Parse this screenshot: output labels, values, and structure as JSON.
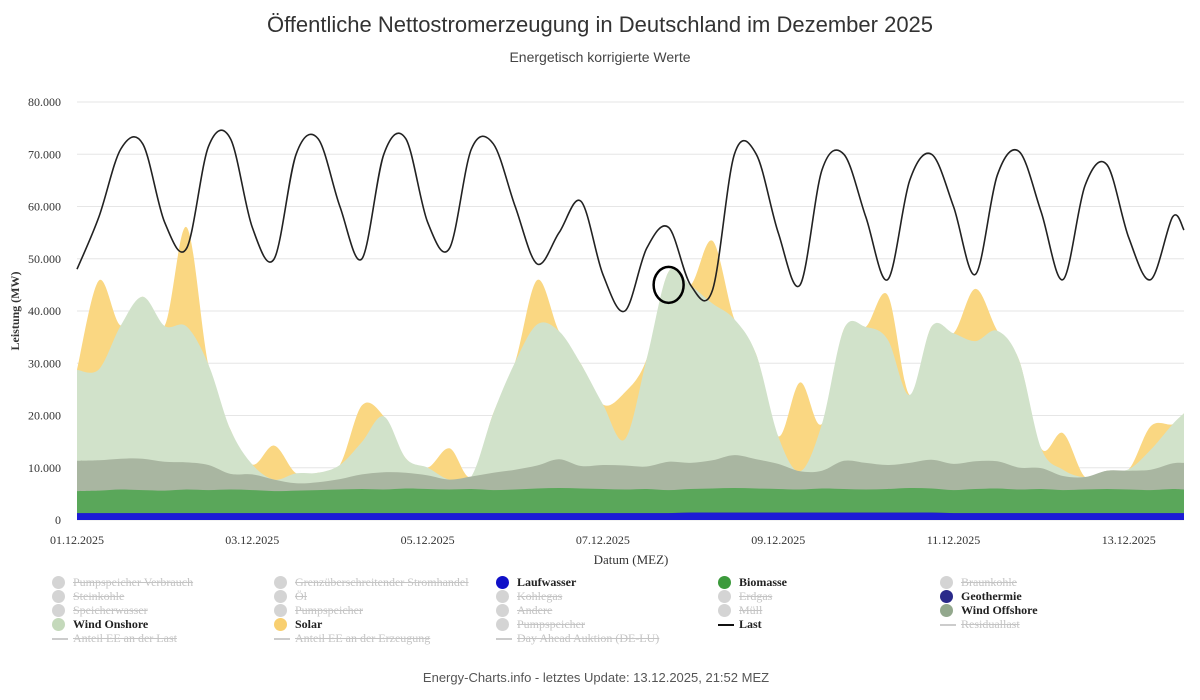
{
  "title": "Öffentliche Nettostromerzeugung in Deutschland im Dezember 2025",
  "subtitle": "Energetisch korrigierte Werte",
  "footer": "Energy-Charts.info - letztes Update: 13.12.2025, 21:52 MEZ",
  "chart_data": {
    "type": "area",
    "ylabel": "Leistung (MW)",
    "xlabel": "Datum (MEZ)",
    "ylim": [
      0,
      80000
    ],
    "yticks": [
      "0",
      "10.000",
      "20.000",
      "30.000",
      "40.000",
      "50.000",
      "60.000",
      "70.000",
      "80.000"
    ],
    "xlim_days": [
      0,
      12.63
    ],
    "xticks": [
      {
        "day": 0,
        "label": "01.12.2025"
      },
      {
        "day": 2,
        "label": "03.12.2025"
      },
      {
        "day": 4,
        "label": "05.12.2025"
      },
      {
        "day": 6,
        "label": "07.12.2025"
      },
      {
        "day": 8,
        "label": "09.12.2025"
      },
      {
        "day": 10,
        "label": "11.12.2025"
      },
      {
        "day": 12,
        "label": "13.12.2025"
      }
    ],
    "grid": true,
    "x_days": [
      0,
      0.25,
      0.5,
      0.75,
      1,
      1.25,
      1.5,
      1.75,
      2,
      2.25,
      2.5,
      2.75,
      3,
      3.25,
      3.5,
      3.75,
      4,
      4.25,
      4.5,
      4.75,
      5,
      5.25,
      5.5,
      5.75,
      6,
      6.25,
      6.5,
      6.75,
      7,
      7.25,
      7.5,
      7.75,
      8,
      8.25,
      8.5,
      8.75,
      9,
      9.25,
      9.5,
      9.75,
      10,
      10.25,
      10.5,
      10.75,
      11,
      11.25,
      11.5,
      11.75,
      12,
      12.25,
      12.5,
      12.63
    ],
    "series": [
      {
        "name": "Laufwasser",
        "color": "#1c1cd6",
        "values": [
          1300,
          1300,
          1300,
          1300,
          1300,
          1300,
          1300,
          1300,
          1300,
          1300,
          1300,
          1300,
          1300,
          1300,
          1300,
          1300,
          1300,
          1300,
          1300,
          1300,
          1300,
          1300,
          1300,
          1300,
          1300,
          1300,
          1300,
          1300,
          1400,
          1400,
          1400,
          1400,
          1400,
          1400,
          1400,
          1400,
          1400,
          1400,
          1400,
          1400,
          1300,
          1300,
          1300,
          1300,
          1300,
          1300,
          1300,
          1300,
          1300,
          1300,
          1300,
          1300
        ]
      },
      {
        "name": "Geothermie",
        "color": "#2e3192",
        "values": [
          30,
          30,
          30,
          30,
          30,
          30,
          30,
          30,
          30,
          30,
          30,
          30,
          30,
          30,
          30,
          30,
          30,
          30,
          30,
          30,
          30,
          30,
          30,
          30,
          30,
          30,
          30,
          30,
          30,
          30,
          30,
          30,
          30,
          30,
          30,
          30,
          30,
          30,
          30,
          30,
          30,
          30,
          30,
          30,
          30,
          30,
          30,
          30,
          30,
          30,
          30,
          30
        ]
      },
      {
        "name": "Biomasse",
        "color": "#5aa75a",
        "values": [
          4200,
          4300,
          4500,
          4400,
          4300,
          4500,
          4400,
          4500,
          4400,
          4200,
          4300,
          4400,
          4500,
          4600,
          4500,
          4700,
          4600,
          4500,
          4600,
          4400,
          4500,
          4700,
          4800,
          4700,
          4600,
          4500,
          4600,
          4400,
          4500,
          4600,
          4700,
          4600,
          4500,
          4400,
          4600,
          4500,
          4400,
          4500,
          4700,
          4600,
          4400,
          4600,
          4700,
          4500,
          4600,
          4400,
          4500,
          4600,
          4500,
          4400,
          4600,
          4500
        ]
      },
      {
        "name": "Wind Offshore",
        "color": "#a9b6a1",
        "values": [
          5800,
          5800,
          5900,
          6000,
          5500,
          5200,
          4800,
          3000,
          3000,
          2200,
          1400,
          1500,
          2000,
          2800,
          3300,
          3000,
          2600,
          1900,
          2400,
          3300,
          3800,
          4400,
          5500,
          4300,
          4600,
          4600,
          4300,
          5400,
          5000,
          5400,
          6300,
          5600,
          4800,
          3500,
          3400,
          5400,
          5100,
          4600,
          4800,
          5500,
          5000,
          5300,
          5200,
          4200,
          4000,
          2700,
          2400,
          3500,
          3600,
          3900,
          4900,
          5100
        ]
      },
      {
        "name": "Wind Onshore",
        "color": "#d1e2ca",
        "values": [
          17400,
          17400,
          25500,
          31000,
          26000,
          26000,
          19200,
          8500,
          1900,
          -200,
          1900,
          1800,
          2700,
          6200,
          10700,
          2800,
          1500,
          -400,
          -2000,
          11400,
          20600,
          27000,
          24500,
          19500,
          11600,
          5000,
          20600,
          36400,
          34000,
          30000,
          26000,
          20000,
          5300,
          -1100,
          9000,
          25200,
          26000,
          24000,
          13000,
          25500,
          25000,
          23000,
          25000,
          20500,
          3800,
          1200,
          -1800,
          -1700,
          300,
          3800,
          7500,
          9500
        ]
      },
      {
        "name": "Solar",
        "color": "#fad782",
        "values": [
          0,
          17000,
          0,
          0,
          0,
          19000,
          0,
          0,
          0,
          6500,
          0,
          0,
          0,
          7000,
          0,
          0,
          0,
          6000,
          0,
          0,
          0,
          8500,
          0,
          0,
          0,
          9000,
          0,
          0,
          0,
          12000,
          0,
          0,
          0,
          17000,
          0,
          0,
          0,
          8500,
          0,
          0,
          0,
          10000,
          0,
          0,
          0,
          7000,
          0,
          0,
          0,
          4500,
          0,
          0
        ]
      }
    ],
    "line_series": {
      "name": "Last",
      "color": "#222222",
      "values": [
        48000,
        58000,
        71000,
        72000,
        57000,
        52000,
        71500,
        73000,
        56000,
        50000,
        70000,
        73000,
        60000,
        50000,
        70000,
        73000,
        57000,
        52000,
        71000,
        72000,
        60000,
        49000,
        55000,
        61000,
        47000,
        40000,
        52000,
        56000,
        45000,
        44000,
        70000,
        70000,
        55000,
        45000,
        67000,
        70000,
        58000,
        46000,
        65000,
        70000,
        60000,
        47000,
        66000,
        70500,
        59000,
        46000,
        64000,
        68000,
        54000,
        46000,
        58000,
        55500
      ]
    },
    "highlight": {
      "day": 6.75,
      "value": 45000,
      "shape": "circle"
    }
  },
  "legend": [
    {
      "label": "Pumpspeicher Verbrauch",
      "state": "off",
      "marker": "dot",
      "color": "#d4d4d4"
    },
    {
      "label": "Grenzüberschreitender Stromhandel",
      "state": "off",
      "marker": "dot",
      "color": "#d4d4d4"
    },
    {
      "label": "Laufwasser",
      "state": "on",
      "marker": "dot",
      "color": "#1010c8"
    },
    {
      "label": "Biomasse",
      "state": "on",
      "marker": "dot",
      "color": "#3c9a3c"
    },
    {
      "label": "Braunkohle",
      "state": "off",
      "marker": "dot",
      "color": "#d4d4d4"
    },
    {
      "label": "Steinkohle",
      "state": "off",
      "marker": "dot",
      "color": "#d4d4d4"
    },
    {
      "label": "Öl",
      "state": "off",
      "marker": "dot",
      "color": "#d4d4d4"
    },
    {
      "label": "Kohlegas",
      "state": "off",
      "marker": "dot",
      "color": "#d4d4d4"
    },
    {
      "label": "Erdgas",
      "state": "off",
      "marker": "dot",
      "color": "#d4d4d4"
    },
    {
      "label": "Geothermie",
      "state": "on",
      "marker": "dot",
      "color": "#2a2a8a"
    },
    {
      "label": "Speicherwasser",
      "state": "off",
      "marker": "dot",
      "color": "#d4d4d4"
    },
    {
      "label": "Pumpspeicher",
      "state": "off",
      "marker": "dot",
      "color": "#d4d4d4"
    },
    {
      "label": "Andere",
      "state": "off",
      "marker": "dot",
      "color": "#d4d4d4"
    },
    {
      "label": "Müll",
      "state": "off",
      "marker": "dot",
      "color": "#d4d4d4"
    },
    {
      "label": "Wind Offshore",
      "state": "on",
      "marker": "dot",
      "color": "#93a88d"
    },
    {
      "label": "Wind Onshore",
      "state": "on",
      "marker": "dot",
      "color": "#c4d9bb"
    },
    {
      "label": "Solar",
      "state": "on",
      "marker": "dot",
      "color": "#f8cf70"
    },
    {
      "label": "Pumpspeicher",
      "state": "off",
      "marker": "dot",
      "color": "#d4d4d4"
    },
    {
      "label": "Last",
      "state": "on",
      "marker": "line",
      "color": "#111111"
    },
    {
      "label": "Residuallast",
      "state": "off",
      "marker": "line",
      "color": "#cccccc"
    },
    {
      "label": "Anteil EE an der Last",
      "state": "off",
      "marker": "line",
      "color": "#cccccc"
    },
    {
      "label": "Anteil EE an der Erzeugung",
      "state": "off",
      "marker": "line",
      "color": "#cccccc"
    },
    {
      "label": "Day Ahead Auktion (DE-LU)",
      "state": "off",
      "marker": "line",
      "color": "#cccccc"
    }
  ]
}
